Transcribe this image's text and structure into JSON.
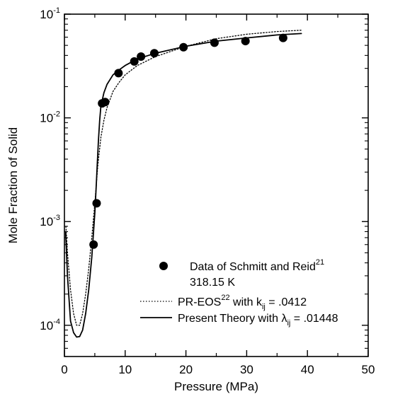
{
  "chart_data": {
    "type": "scatter",
    "xlabel": "Pressure (MPa)",
    "ylabel": "Mole Fraction of Solid",
    "xlim": [
      0,
      50
    ],
    "ylim": [
      5e-05,
      0.1
    ],
    "yscale": "log",
    "grid": false,
    "legend_position": "bottom-right",
    "x_ticks": [
      "0",
      "10",
      "20",
      "30",
      "40",
      "50"
    ],
    "y_ticks": [
      {
        "base": "10",
        "exp": "-1",
        "value": 0.1
      },
      {
        "base": "10",
        "exp": "-2",
        "value": 0.01
      },
      {
        "base": "10",
        "exp": "-3",
        "value": 0.001
      },
      {
        "base": "10",
        "exp": "-4",
        "value": 0.0001
      }
    ],
    "series": [
      {
        "name": "Data of Schmitt and Reid",
        "name_sup": "21",
        "name_line2": "318.15 K",
        "kind": "points",
        "x": [
          4.8,
          5.3,
          6.2,
          6.7,
          8.9,
          11.5,
          12.6,
          14.8,
          19.6,
          24.7,
          29.8,
          36.0
        ],
        "y": [
          0.0006,
          0.0015,
          0.0138,
          0.0142,
          0.027,
          0.035,
          0.039,
          0.042,
          0.048,
          0.053,
          0.055,
          0.059
        ]
      },
      {
        "name": "PR-EOS",
        "name_sup": "22",
        "name_mid": " with k",
        "name_sub": "ij",
        "name_tail": " = .0412",
        "kind": "line",
        "style": "dotted",
        "x": [
          0.25,
          0.5,
          1.0,
          1.5,
          2.0,
          2.5,
          3.0,
          3.5,
          4.0,
          4.5,
          5.0,
          5.5,
          6.0,
          6.5,
          7.0,
          8.0,
          9.0,
          10.0,
          12.0,
          15.0,
          20.0,
          25.0,
          30.0,
          35.0,
          39.0
        ],
        "y": [
          0.0009,
          0.0005,
          0.00022,
          0.00013,
          0.0001,
          0.0001,
          0.00013,
          0.0002,
          0.00035,
          0.0007,
          0.0015,
          0.0035,
          0.0065,
          0.0095,
          0.0125,
          0.018,
          0.022,
          0.026,
          0.032,
          0.039,
          0.049,
          0.058,
          0.064,
          0.068,
          0.07
        ]
      },
      {
        "name": "Present Theory with λ",
        "name_sub": "ij",
        "name_tail": " = .01448",
        "kind": "line",
        "style": "solid",
        "x": [
          0.2,
          0.5,
          1.0,
          1.5,
          2.0,
          2.5,
          3.0,
          3.5,
          4.0,
          4.5,
          5.0,
          5.2,
          5.4,
          5.6,
          5.8,
          6.0,
          6.5,
          7.0,
          8.0,
          9.0,
          10.0,
          12.0,
          15.0,
          20.0,
          25.0,
          30.0,
          35.0,
          39.0
        ],
        "y": [
          0.0008,
          0.0003,
          0.00011,
          8.5e-05,
          7.7e-05,
          7.8e-05,
          9e-05,
          0.00013,
          0.00022,
          0.00045,
          0.0012,
          0.002,
          0.0035,
          0.006,
          0.0095,
          0.013,
          0.0175,
          0.021,
          0.026,
          0.029,
          0.032,
          0.037,
          0.042,
          0.049,
          0.055,
          0.059,
          0.063,
          0.065
        ]
      }
    ]
  }
}
